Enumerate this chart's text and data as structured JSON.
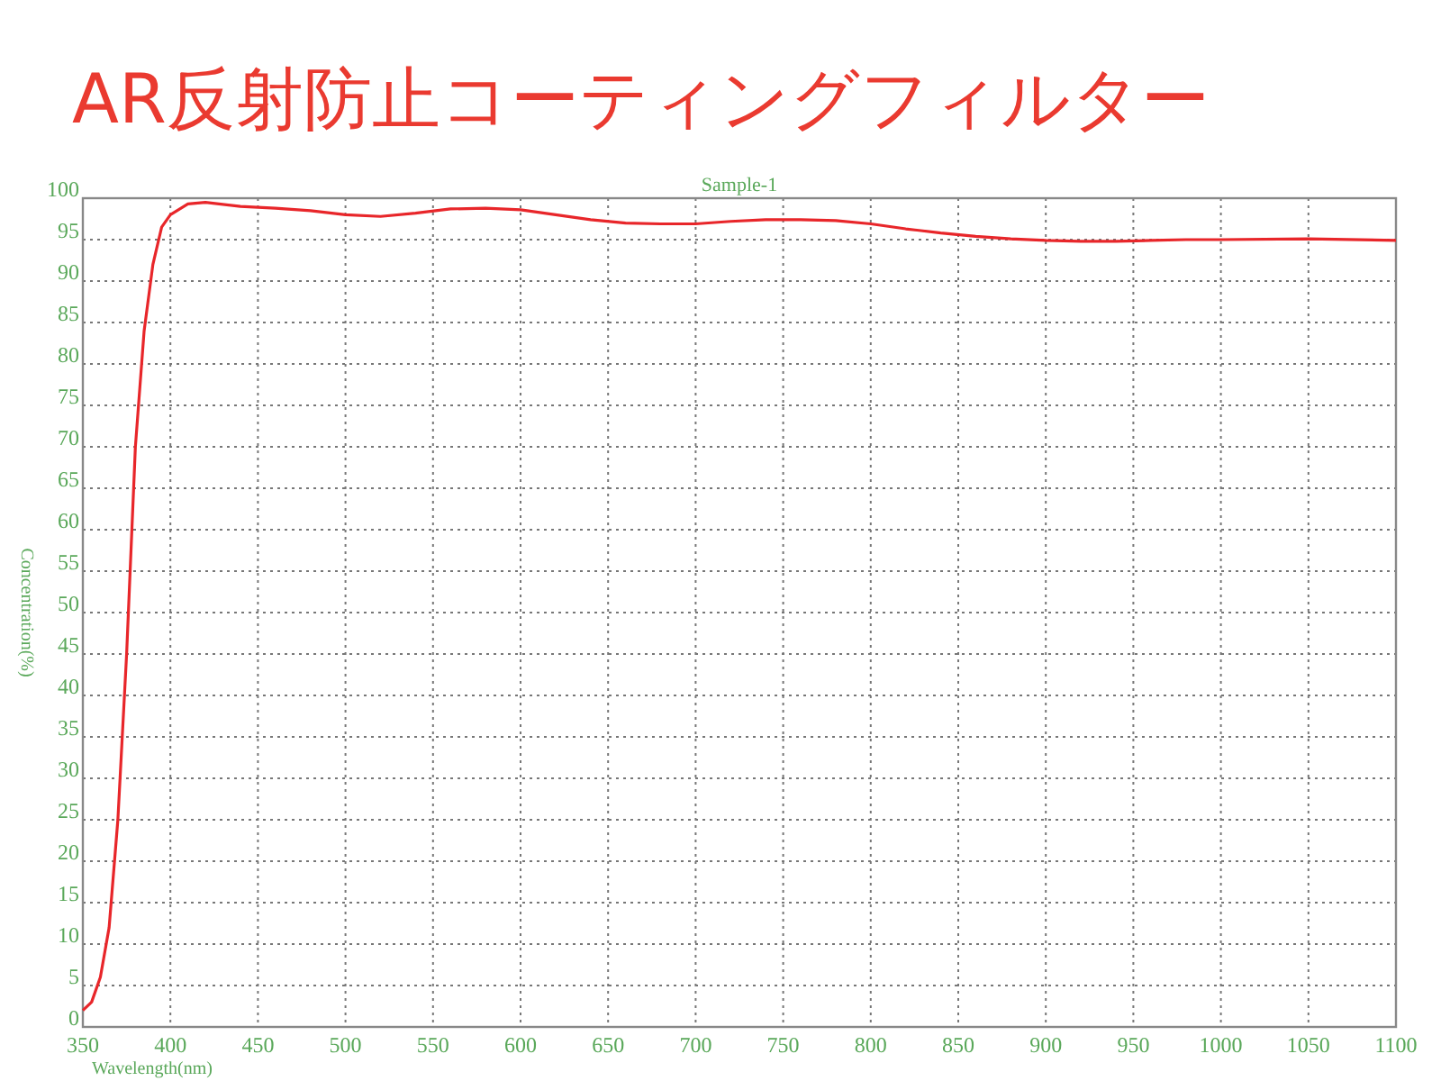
{
  "chart_data": {
    "type": "line",
    "title": "AR反射防止コーティングフィルター",
    "subtitle": "Sample-1",
    "xlabel": "Wavelength(nm)",
    "ylabel": "Concentration(%)",
    "x": [
      350,
      355,
      360,
      365,
      370,
      375,
      380,
      385,
      390,
      395,
      400,
      410,
      420,
      440,
      460,
      480,
      500,
      520,
      540,
      560,
      580,
      600,
      620,
      640,
      660,
      680,
      700,
      720,
      740,
      760,
      780,
      800,
      820,
      840,
      860,
      880,
      900,
      920,
      940,
      960,
      980,
      1000,
      1050,
      1100
    ],
    "series": [
      {
        "color": "#e8262a",
        "values": [
          2,
          3,
          6,
          12,
          25,
          45,
          70,
          84,
          92,
          96.5,
          98,
          99.3,
          99.5,
          99,
          98.8,
          98.5,
          98,
          97.8,
          98.2,
          98.7,
          98.8,
          98.6,
          98,
          97.4,
          97,
          96.9,
          96.9,
          97.2,
          97.4,
          97.4,
          97.3,
          96.9,
          96.3,
          95.8,
          95.4,
          95.1,
          94.9,
          94.8,
          94.8,
          94.9,
          95,
          95,
          95.1,
          94.9
        ]
      }
    ],
    "xlim": [
      350,
      1100
    ],
    "ylim": [
      0,
      100
    ],
    "xticks": [
      350,
      400,
      450,
      500,
      550,
      600,
      650,
      700,
      750,
      800,
      850,
      900,
      950,
      1000,
      1050,
      1100
    ],
    "yticks": [
      0,
      5,
      10,
      15,
      20,
      25,
      30,
      35,
      40,
      45,
      50,
      55,
      60,
      65,
      70,
      75,
      80,
      85,
      90,
      95,
      100
    ],
    "grid": true,
    "marker": "none",
    "line_style": "solid"
  }
}
